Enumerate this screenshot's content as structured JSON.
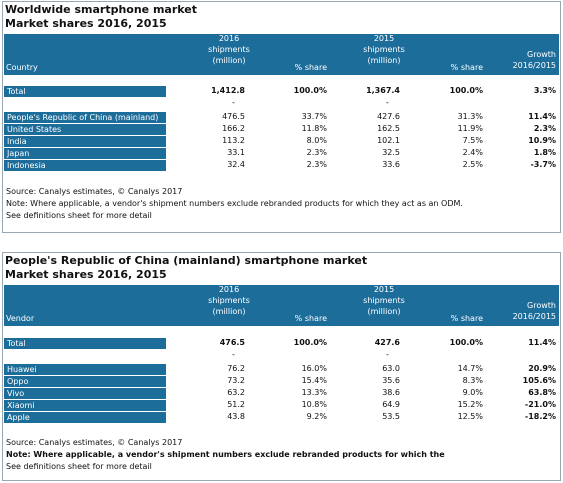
{
  "t1": {
    "title": "Worldwide smartphone market",
    "subtitle": "Market shares 2016, 2015",
    "hdr": {
      "first": "Country",
      "y2016_l1": "2016",
      "y2016_l2": "shipments",
      "y2016_l3": "(million)",
      "share1": "% share",
      "y2015_l1": "2015",
      "y2015_l2": "shipments",
      "y2015_l3": "(million)",
      "share2": "% share",
      "growth_l1": "Growth",
      "growth_l2": "2016/2015"
    },
    "total": {
      "label": "Total",
      "s16": "1,412.8",
      "p16": "100.0%",
      "s15": "1,367.4",
      "p15": "100.0%",
      "g": "3.3%"
    },
    "dash1": "-",
    "dash2": "-",
    "rows": [
      {
        "label": "People's Republic of China (mainland)",
        "s16": "476.5",
        "p16": "33.7%",
        "s15": "427.6",
        "p15": "31.3%",
        "g": "11.4%"
      },
      {
        "label": "United States",
        "s16": "166.2",
        "p16": "11.8%",
        "s15": "162.5",
        "p15": "11.9%",
        "g": "2.3%"
      },
      {
        "label": "India",
        "s16": "113.2",
        "p16": "8.0%",
        "s15": "102.1",
        "p15": "7.5%",
        "g": "10.9%"
      },
      {
        "label": "Japan",
        "s16": "33.1",
        "p16": "2.3%",
        "s15": "32.5",
        "p15": "2.4%",
        "g": "1.8%"
      },
      {
        "label": "Indonesia",
        "s16": "32.4",
        "p16": "2.3%",
        "s15": "33.6",
        "p15": "2.5%",
        "g": "-3.7%"
      }
    ],
    "source": "Source: Canalys estimates, © Canalys 2017",
    "note": "Note: Where applicable, a vendor's shipment numbers exclude rebranded products for which they act as an ODM.",
    "defs": "See definitions sheet for more detail"
  },
  "t2": {
    "title": "People's Republic of China (mainland) smartphone market",
    "subtitle": "Market shares 2016, 2015",
    "hdr": {
      "first": "Vendor",
      "y2016_l1": "2016",
      "y2016_l2": "shipments",
      "y2016_l3": "(million)",
      "share1": "% share",
      "y2015_l1": "2015",
      "y2015_l2": "shipments",
      "y2015_l3": "(million)",
      "share2": "% share",
      "growth_l1": "Growth",
      "growth_l2": "2016/2015"
    },
    "total": {
      "label": "Total",
      "s16": "476.5",
      "p16": "100.0%",
      "s15": "427.6",
      "p15": "100.0%",
      "g": "11.4%"
    },
    "dash1": "-",
    "dash2": "-",
    "rows": [
      {
        "label": "Huawei",
        "s16": "76.2",
        "p16": "16.0%",
        "s15": "63.0",
        "p15": "14.7%",
        "g": "20.9%"
      },
      {
        "label": "Oppo",
        "s16": "73.2",
        "p16": "15.4%",
        "s15": "35.6",
        "p15": "8.3%",
        "g": "105.6%"
      },
      {
        "label": "Vivo",
        "s16": "63.2",
        "p16": "13.3%",
        "s15": "38.6",
        "p15": "9.0%",
        "g": "63.8%"
      },
      {
        "label": "Xiaomi",
        "s16": "51.2",
        "p16": "10.8%",
        "s15": "64.9",
        "p15": "15.2%",
        "g": "-21.0%"
      },
      {
        "label": "Apple",
        "s16": "43.8",
        "p16": "9.2%",
        "s15": "53.5",
        "p15": "12.5%",
        "g": "-18.2%"
      }
    ],
    "source": "Source: Canalys estimates, © Canalys 2017",
    "note": "Note: Where applicable, a vendor's shipment numbers exclude rebranded products for which the",
    "defs": "See definitions sheet for more detail"
  },
  "colors": {
    "band": "#1d6d9b",
    "text": "#111111",
    "header_text": "#ffffff"
  }
}
